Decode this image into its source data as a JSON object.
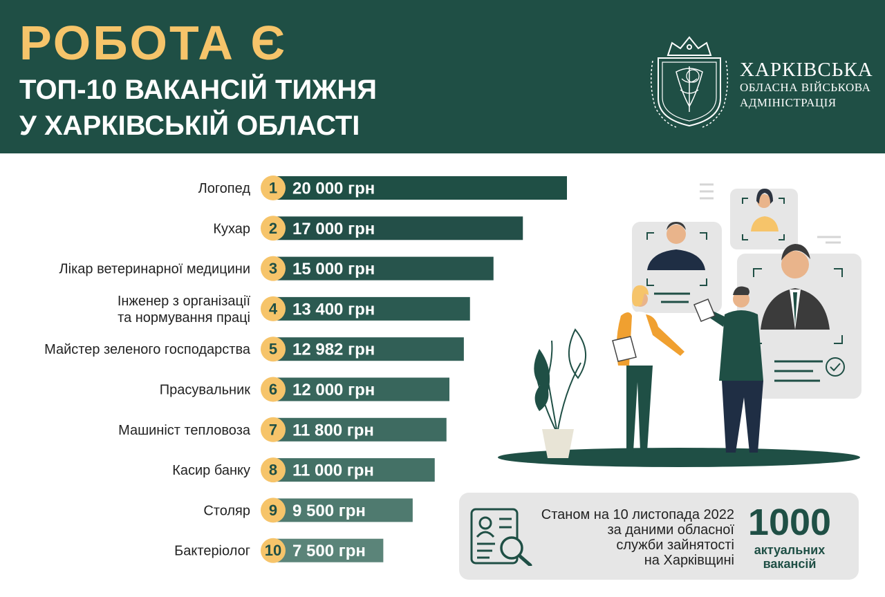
{
  "header": {
    "title": "РОБОТА Є",
    "subtitle_line1": "ТОП-10 ВАКАНСІЙ ТИЖНЯ",
    "subtitle_line2": "У ХАРКІВСЬКІЙ ОБЛАСТІ",
    "org_line1": "ХАРКІВСЬКА",
    "org_line2": "ОБЛАСНА ВІЙСЬКОВА",
    "org_line3": "АДМІНІСТРАЦІЯ"
  },
  "chart_data": {
    "type": "bar",
    "orientation": "horizontal",
    "categories": [
      [
        "Логопед"
      ],
      [
        "Кухар"
      ],
      [
        "Лікар ветеринарної медицини"
      ],
      [
        "Інженер з організації",
        "та нормування праці"
      ],
      [
        "Майстер зеленого господарства"
      ],
      [
        "Прасувальник"
      ],
      [
        "Машиніст тепловоза"
      ],
      [
        "Касир банку"
      ],
      [
        "Столяр"
      ],
      [
        "Бактеріолог"
      ]
    ],
    "ranks": [
      "1",
      "2",
      "3",
      "4",
      "5",
      "6",
      "7",
      "8",
      "9",
      "10"
    ],
    "values": [
      20000,
      17000,
      15000,
      13400,
      12982,
      12000,
      11800,
      11000,
      9500,
      7500
    ],
    "value_labels": [
      "20 000 грн",
      "17 000 грн",
      "15 000 грн",
      "13 400 грн",
      "12 982 грн",
      "12 000 грн",
      "11 800 грн",
      "11 000 грн",
      "9 500 грн",
      "7 500 грн"
    ],
    "bar_colors": [
      "#1f4f45",
      "#234f48",
      "#27544c",
      "#2b5a51",
      "#315f56",
      "#38665c",
      "#3e6b61",
      "#447166",
      "#4f7a6f",
      "#5b8479"
    ],
    "badge_color": "#f6c46a",
    "grid": false
  },
  "info": {
    "line1": "Станом на 10 листопада 2022",
    "line2": "за даними обласної",
    "line3": "служби зайнятості",
    "line4": "на Харківщині",
    "count": "1000",
    "count_label1": "актуальних",
    "count_label2": "вакансій"
  },
  "colors": {
    "header_bg": "#1f4f45",
    "accent": "#f6c46a",
    "info_bg": "#e6e6e6"
  }
}
